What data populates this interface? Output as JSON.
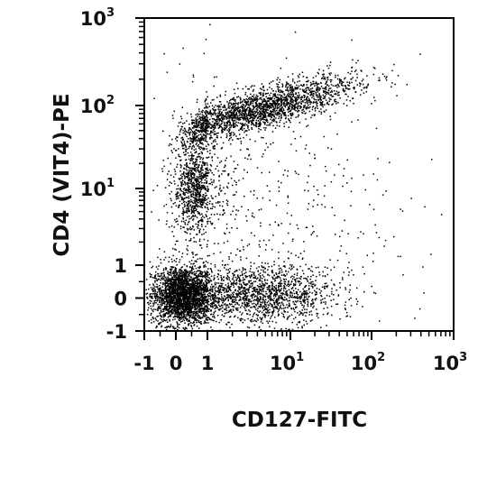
{
  "chart_data": {
    "type": "scatter",
    "xlabel": "CD127-FITC",
    "ylabel": "CD4 (VIT4)-PE",
    "x_scale": "biexponential",
    "y_scale": "biexponential",
    "xlim": [
      -1,
      1000
    ],
    "ylim": [
      -1,
      1000
    ],
    "x_ticks": [
      {
        "base": "-1",
        "exp": ""
      },
      {
        "base": "0",
        "exp": ""
      },
      {
        "base": "1",
        "exp": ""
      },
      {
        "base": "10",
        "exp": "1"
      },
      {
        "base": "10",
        "exp": "2"
      },
      {
        "base": "10",
        "exp": "3"
      }
    ],
    "y_ticks": [
      {
        "base": "-1",
        "exp": ""
      },
      {
        "base": "0",
        "exp": ""
      },
      {
        "base": "1",
        "exp": ""
      },
      {
        "base": "10",
        "exp": "1"
      },
      {
        "base": "10",
        "exp": "2"
      },
      {
        "base": "10",
        "exp": "3"
      }
    ],
    "grid": false,
    "legend": "none",
    "point_color": "#000000",
    "populations": [
      {
        "x_center": 0.2,
        "y_center": 0.1,
        "x_spread": 0.5,
        "y_spread": 0.45,
        "count": 2600
      },
      {
        "x_center": 4.5,
        "y_center": 0.1,
        "x_spread": 0.45,
        "y_spread": 0.45,
        "count": 1400
      },
      {
        "x_center": 0.6,
        "y_center": 10,
        "x_spread": 0.35,
        "y_spread": 0.28,
        "count": 900
      },
      {
        "x_center": 4,
        "y_center": 90,
        "x_spread": 0.6,
        "y_spread": 0.12,
        "count": 2200
      },
      {
        "x_center": 3,
        "y_center": 5,
        "x_spread": 0.9,
        "y_spread": 0.9,
        "count": 500
      }
    ]
  }
}
